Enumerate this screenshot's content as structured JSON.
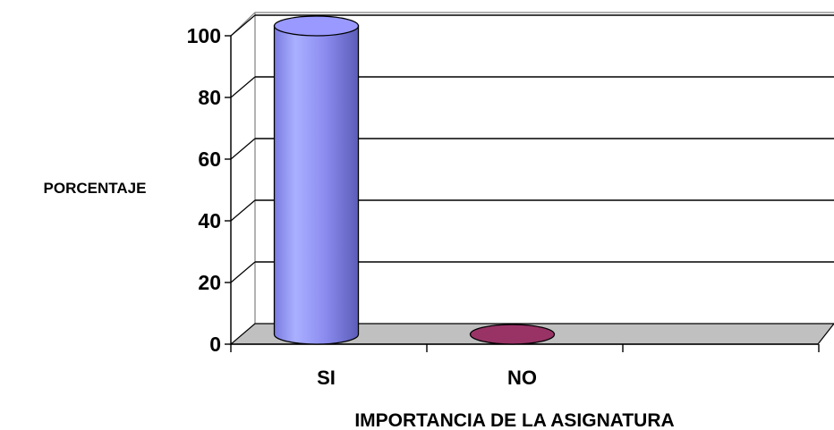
{
  "chart_data": {
    "type": "bar",
    "categories": [
      "SI",
      "NO"
    ],
    "series": [
      {
        "values": [
          100,
          0
        ]
      }
    ],
    "xlabel": "IMPORTANCIA DE LA ASIGNATURA",
    "ylabel": "PORCENTAJE",
    "ylim": [
      0,
      100
    ],
    "yticks": [
      0,
      20,
      40,
      60,
      80,
      100
    ],
    "grid": true,
    "style": "3d-cylinder",
    "colors": {
      "bar_si": "#9999ff",
      "bar_si_dark": "#6464c8",
      "bar_no": "#993366",
      "bar_no_dark": "#5a1e3c",
      "floor": "#c0c0c0",
      "gridline": "#000000"
    }
  }
}
